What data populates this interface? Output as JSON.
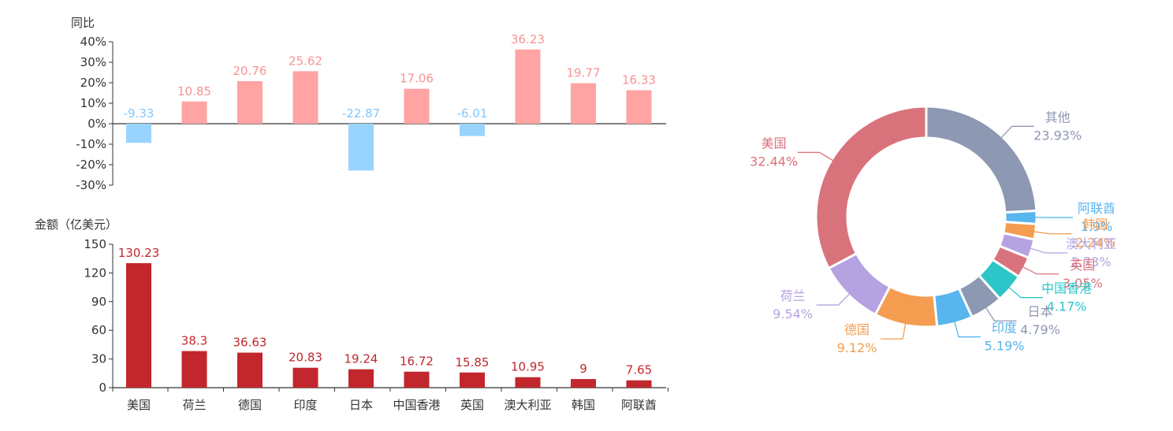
{
  "colors": {
    "positive_bar": "#FFA3A3",
    "negative_bar": "#99D4FF",
    "positive_label": "#F79393",
    "negative_label": "#80C8FF",
    "amount_bar": "#C1272D",
    "amount_label": "#C1272D",
    "axis": "#333333",
    "text": "#333333"
  },
  "chart_data": [
    {
      "type": "bar",
      "ylabel": "同比",
      "categories": [
        "美国",
        "荷兰",
        "德国",
        "印度",
        "日本",
        "中国香港",
        "英国",
        "澳大利亚",
        "韩国",
        "阿联酋"
      ],
      "values": [
        -9.33,
        10.85,
        20.76,
        25.62,
        -22.87,
        17.06,
        -6.01,
        36.23,
        19.77,
        16.33
      ],
      "value_labels": [
        "-9.33",
        "10.85",
        "20.76",
        "25.62",
        "-22.87",
        "17.06",
        "-6.01",
        "36.23",
        "19.77",
        "16.33"
      ],
      "ylim": [
        -30,
        40
      ],
      "yticks": [
        -30,
        -20,
        -10,
        0,
        10,
        20,
        30,
        40
      ],
      "ytick_labels": [
        "-30%",
        "-20%",
        "-10%",
        "0%",
        "10%",
        "20%",
        "30%",
        "40%"
      ],
      "grid": false
    },
    {
      "type": "bar",
      "ylabel": "金额（亿美元）",
      "categories": [
        "美国",
        "荷兰",
        "德国",
        "印度",
        "日本",
        "中国香港",
        "英国",
        "澳大利亚",
        "韩国",
        "阿联酋"
      ],
      "values": [
        130.23,
        38.3,
        36.63,
        20.83,
        19.24,
        16.72,
        15.85,
        10.95,
        9,
        7.65
      ],
      "value_labels": [
        "130.23",
        "38.3",
        "36.63",
        "20.83",
        "19.24",
        "16.72",
        "15.85",
        "10.95",
        "9",
        "7.65"
      ],
      "ylim": [
        0,
        150
      ],
      "yticks": [
        0,
        30,
        60,
        90,
        120,
        150
      ],
      "ytick_labels": [
        "0",
        "30",
        "60",
        "90",
        "120",
        "150"
      ],
      "grid": false
    },
    {
      "type": "pie",
      "donut": true,
      "labels": [
        "其他",
        "阿联酋",
        "韩国",
        "澳大利亚",
        "英国",
        "中国香港",
        "日本",
        "印度",
        "德国",
        "荷兰",
        "美国"
      ],
      "values": [
        23.93,
        1.9,
        2.24,
        2.73,
        3.05,
        4.17,
        4.79,
        5.19,
        9.12,
        9.54,
        32.44
      ],
      "value_labels": [
        "23.93%",
        "1.9%",
        "2.24%",
        "2.73%",
        "3.05%",
        "4.17%",
        "4.79%",
        "5.19%",
        "9.12%",
        "9.54%",
        "32.44%"
      ],
      "colors": [
        "#8D98B3",
        "#58B5EE",
        "#F49D50",
        "#B5A2E0",
        "#D9737B",
        "#2CC5C8",
        "#8D98B3",
        "#58B5EE",
        "#F49D50",
        "#B5A2E0",
        "#D9737B"
      ],
      "legend": "none"
    }
  ]
}
